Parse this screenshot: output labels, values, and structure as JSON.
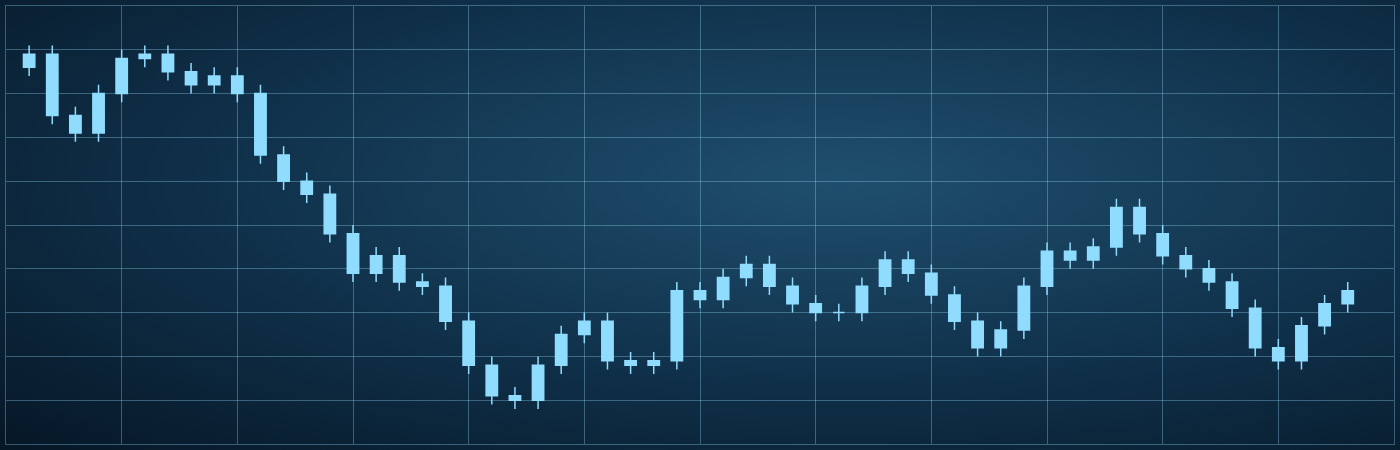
{
  "chart_data": {
    "type": "candlestick",
    "x": [
      1,
      2,
      3,
      4,
      5,
      6,
      7,
      8,
      9,
      10,
      11,
      12,
      13,
      14,
      15,
      16,
      17,
      18,
      19,
      20,
      21,
      22,
      23,
      24,
      25,
      26,
      27,
      28,
      29,
      30,
      31,
      32,
      33,
      34,
      35,
      36,
      37,
      38,
      39,
      40,
      41,
      42,
      43,
      44,
      45,
      46,
      47,
      48,
      49,
      50,
      51,
      52,
      53,
      54,
      55,
      56,
      57,
      58
    ],
    "open": [
      430,
      445,
      375,
      355,
      400,
      440,
      445,
      425,
      410,
      420,
      400,
      330,
      300,
      285,
      240,
      195,
      215,
      185,
      180,
      140,
      90,
      55,
      50,
      90,
      125,
      140,
      95,
      90,
      95,
      175,
      165,
      190,
      205,
      180,
      160,
      150,
      150,
      180,
      210,
      195,
      170,
      140,
      110,
      130,
      180,
      220,
      210,
      225,
      270,
      240,
      215,
      200,
      185,
      155,
      110,
      95,
      135,
      160
    ],
    "high": [
      455,
      455,
      385,
      410,
      450,
      455,
      455,
      435,
      430,
      430,
      410,
      340,
      310,
      295,
      250,
      225,
      225,
      195,
      190,
      150,
      100,
      65,
      100,
      135,
      150,
      150,
      105,
      105,
      185,
      185,
      200,
      215,
      215,
      190,
      170,
      160,
      190,
      220,
      220,
      205,
      180,
      150,
      140,
      190,
      230,
      230,
      235,
      280,
      280,
      250,
      225,
      210,
      195,
      165,
      120,
      145,
      170,
      185
    ],
    "low": [
      420,
      365,
      345,
      345,
      390,
      430,
      415,
      400,
      400,
      390,
      320,
      290,
      275,
      230,
      185,
      185,
      175,
      170,
      130,
      80,
      45,
      40,
      40,
      80,
      115,
      85,
      80,
      80,
      85,
      155,
      155,
      180,
      170,
      150,
      140,
      140,
      140,
      170,
      185,
      160,
      130,
      100,
      100,
      120,
      170,
      200,
      200,
      215,
      230,
      205,
      190,
      175,
      145,
      100,
      85,
      85,
      125,
      150
    ],
    "close": [
      445,
      375,
      355,
      400,
      440,
      445,
      425,
      410,
      420,
      400,
      330,
      300,
      285,
      240,
      195,
      215,
      185,
      180,
      140,
      90,
      55,
      50,
      90,
      125,
      140,
      95,
      90,
      95,
      175,
      165,
      190,
      205,
      180,
      160,
      150,
      150,
      180,
      210,
      195,
      170,
      140,
      110,
      130,
      180,
      220,
      210,
      225,
      270,
      240,
      215,
      200,
      185,
      155,
      110,
      95,
      135,
      160,
      175
    ],
    "xlim": [
      0,
      60
    ],
    "ylim": [
      0,
      500
    ],
    "xticks": [
      0,
      5,
      10,
      15,
      20,
      25,
      30,
      35,
      40,
      45,
      50,
      55,
      60
    ],
    "yticks": [
      0,
      50,
      100,
      150,
      200,
      250,
      300,
      350,
      400,
      450,
      500
    ],
    "grid": true,
    "tick_labels": false,
    "color": "#8fdcff"
  }
}
